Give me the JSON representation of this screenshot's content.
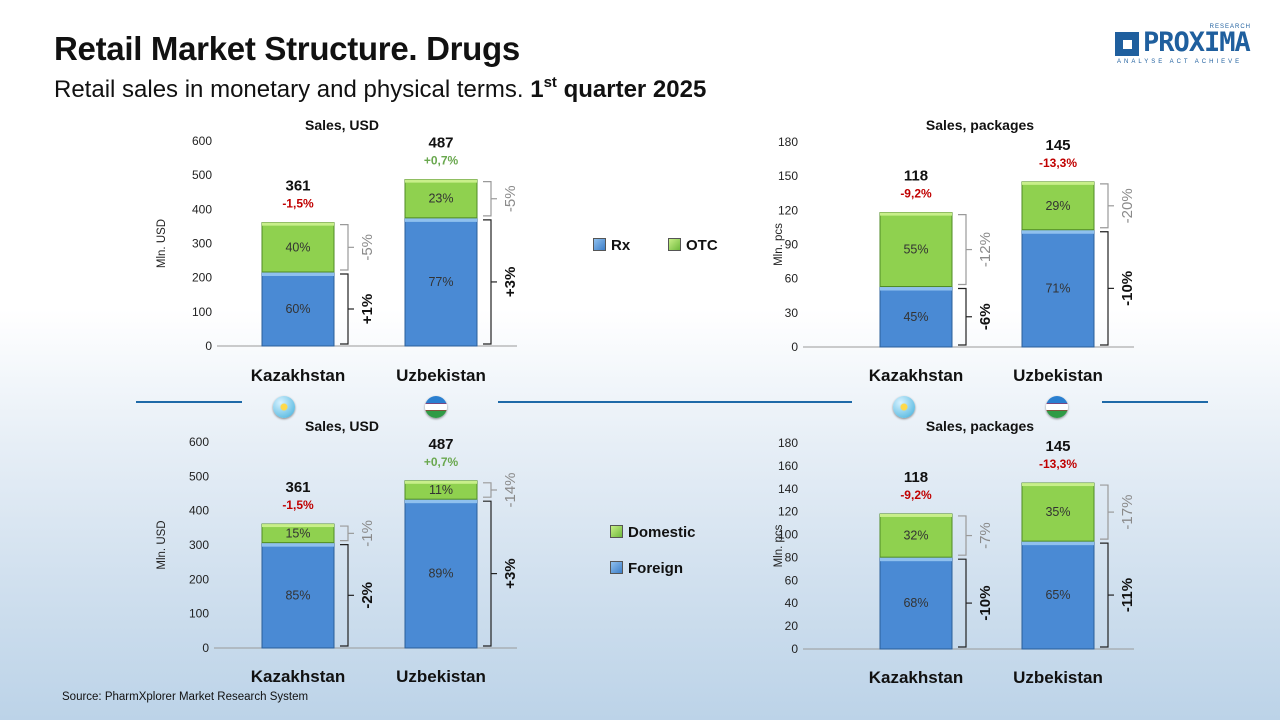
{
  "header": {
    "title": "Retail Market Structure. Drugs",
    "subtitle_main": "Retail sales in monetary and physical terms. ",
    "subtitle_q": "1",
    "subtitle_sup": "st",
    "subtitle_end": " quarter 2025"
  },
  "logo": {
    "brand": "PROXIMA",
    "research": "RESEARCH",
    "tagline": "ANALYSE ACT ACHIEVE"
  },
  "legend_top": {
    "rx": "Rx",
    "otc": "OTC"
  },
  "legend_bottom": {
    "domestic": "Domestic",
    "foreign": "Foreign"
  },
  "source": "Source: PharmXplorer Market Research System",
  "colors": {
    "bottom_segment": "#4a8ad4",
    "top_segment": "#8fd14f",
    "positive_growth": "#6aa84f",
    "negative_growth": "#c00000",
    "divider": "#1f6aa8"
  },
  "icons": {
    "kazakhstan": "kazakhstan-flag-icon",
    "uzbekistan": "uzbekistan-flag-icon",
    "logo": "proxima-logo-icon"
  },
  "chart_data": [
    {
      "type": "bar",
      "stacked": true,
      "title": "Sales, USD",
      "ylabel": "Mln. USD",
      "ylim": [
        0,
        600
      ],
      "yticks": [
        0,
        100,
        200,
        300,
        400,
        500,
        600
      ],
      "categories": [
        "Kazakhstan",
        "Uzbekistan"
      ],
      "totals": [
        "361",
        "487"
      ],
      "total_values": [
        361,
        487
      ],
      "total_growth": [
        "-1,5%",
        "+0,7%"
      ],
      "series": [
        {
          "name": "Rx",
          "share": [
            0.6,
            0.77
          ],
          "labels": [
            "60%",
            "77%"
          ],
          "growth": [
            "+1%",
            "+3%"
          ]
        },
        {
          "name": "OTC",
          "share": [
            0.4,
            0.23
          ],
          "labels": [
            "40%",
            "23%"
          ],
          "growth": [
            "-5%",
            "-5%"
          ]
        }
      ]
    },
    {
      "type": "bar",
      "stacked": true,
      "title": "Sales, packages",
      "ylabel": "Mln. pcs",
      "ylim": [
        0,
        180
      ],
      "yticks": [
        0,
        30,
        60,
        90,
        120,
        150,
        180
      ],
      "categories": [
        "Kazakhstan",
        "Uzbekistan"
      ],
      "totals": [
        "118",
        "145"
      ],
      "total_values": [
        118,
        145
      ],
      "total_growth": [
        "-9,2%",
        "-13,3%"
      ],
      "series": [
        {
          "name": "Rx",
          "share": [
            0.45,
            0.71
          ],
          "labels": [
            "45%",
            "71%"
          ],
          "growth": [
            "-6%",
            "-10%"
          ]
        },
        {
          "name": "OTC",
          "share": [
            0.55,
            0.29
          ],
          "labels": [
            "55%",
            "29%"
          ],
          "growth": [
            "-12%",
            "-20%"
          ]
        }
      ]
    },
    {
      "type": "bar",
      "stacked": true,
      "title": "Sales, USD",
      "ylabel": "Mln. USD",
      "ylim": [
        0,
        600
      ],
      "yticks": [
        0,
        100,
        200,
        300,
        400,
        500,
        600
      ],
      "categories": [
        "Kazakhstan",
        "Uzbekistan"
      ],
      "totals": [
        "361",
        "487"
      ],
      "total_values": [
        361,
        487
      ],
      "total_growth": [
        "-1,5%",
        "+0,7%"
      ],
      "series": [
        {
          "name": "Foreign",
          "share": [
            0.85,
            0.89
          ],
          "labels": [
            "85%",
            "89%"
          ],
          "growth": [
            "-2%",
            "+3%"
          ]
        },
        {
          "name": "Domestic",
          "share": [
            0.15,
            0.11
          ],
          "labels": [
            "15%",
            "11%"
          ],
          "growth": [
            "-1%",
            "-14%"
          ]
        }
      ]
    },
    {
      "type": "bar",
      "stacked": true,
      "title": "Sales, packages",
      "ylabel": "Mln. pcs",
      "ylim": [
        0,
        180
      ],
      "yticks": [
        0,
        20,
        40,
        60,
        80,
        100,
        120,
        140,
        160,
        180
      ],
      "categories": [
        "Kazakhstan",
        "Uzbekistan"
      ],
      "totals": [
        "118",
        "145"
      ],
      "total_values": [
        118,
        145
      ],
      "total_growth": [
        "-9,2%",
        "-13,3%"
      ],
      "series": [
        {
          "name": "Foreign",
          "share": [
            0.68,
            0.65
          ],
          "labels": [
            "68%",
            "65%"
          ],
          "growth": [
            "-10%",
            "-11%"
          ]
        },
        {
          "name": "Domestic",
          "share": [
            0.32,
            0.35
          ],
          "labels": [
            "32%",
            "35%"
          ],
          "growth": [
            "-7%",
            "-17%"
          ]
        }
      ]
    }
  ]
}
